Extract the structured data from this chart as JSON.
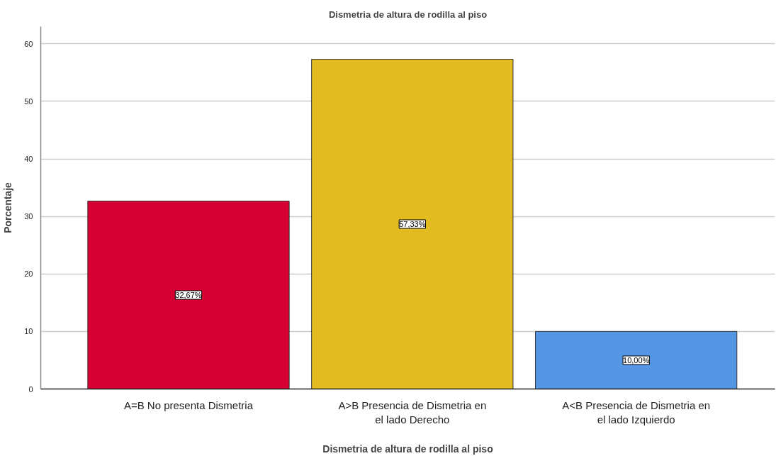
{
  "chart_data": {
    "type": "bar",
    "title": "Dismetria de altura de rodilla al piso",
    "xlabel": "Dismetria de altura de rodilla al piso",
    "ylabel": "Porcentaje",
    "categories": [
      "A=B No presenta Dismetria",
      "A>B Presencia de Dismetria en el lado Derecho",
      "A<B Presencia de Dismetria en el lado Izquierdo"
    ],
    "values": [
      32.67,
      57.33,
      10.0
    ],
    "colors": [
      "#d60032",
      "#e1bb20",
      "#5596e4"
    ],
    "value_labels": [
      "32,67%",
      "57,33%",
      "10,00%"
    ],
    "ylim": [
      0,
      63
    ],
    "yticks": [
      0,
      10,
      20,
      30,
      40,
      50,
      60
    ],
    "grid": "y"
  }
}
